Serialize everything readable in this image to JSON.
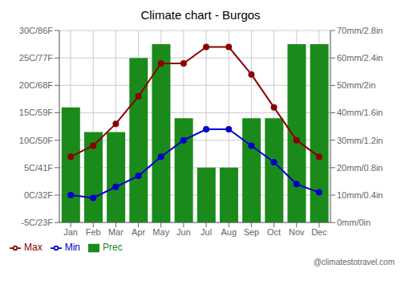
{
  "chart_data": {
    "type": "combo",
    "title": "Climate chart - Burgos",
    "categories": [
      "Jan",
      "Feb",
      "Mar",
      "Apr",
      "May",
      "Jun",
      "Jul",
      "Aug",
      "Sep",
      "Oct",
      "Nov",
      "Dec"
    ],
    "series": [
      {
        "name": "Prec",
        "type": "bar",
        "color": "#1a8a1a",
        "axis": "y2",
        "values": [
          42,
          33,
          33,
          60,
          65,
          38,
          20,
          20,
          38,
          38,
          65,
          65
        ]
      },
      {
        "name": "Min",
        "type": "line",
        "color": "#0000cc",
        "marker": "circle",
        "values": [
          0,
          -0.5,
          1.5,
          3.5,
          7,
          10,
          12,
          12,
          9,
          6,
          2,
          0.5
        ]
      },
      {
        "name": "Max",
        "type": "line",
        "color": "#8b0000",
        "marker": "circle",
        "values": [
          7,
          9,
          13,
          18,
          24,
          24,
          27,
          27,
          22,
          16,
          10,
          7
        ]
      }
    ],
    "ylim": [
      -5,
      30
    ],
    "yticks": [
      {
        "value": -5,
        "label": "-5C/23F"
      },
      {
        "value": 0,
        "label": "0C/32F"
      },
      {
        "value": 5,
        "label": "5C/41F"
      },
      {
        "value": 10,
        "label": "10C/50F"
      },
      {
        "value": 15,
        "label": "15C/59F"
      },
      {
        "value": 20,
        "label": "20C/68F"
      },
      {
        "value": 25,
        "label": "25C/77F"
      },
      {
        "value": 30,
        "label": "30C/86F"
      }
    ],
    "y2lim": [
      0,
      70
    ],
    "y2ticks": [
      {
        "value": 0,
        "label": "0mm/0in"
      },
      {
        "value": 10,
        "label": "10mm/0.4in"
      },
      {
        "value": 20,
        "label": "20mm/0.8in"
      },
      {
        "value": 30,
        "label": "30mm/1.2in"
      },
      {
        "value": 40,
        "label": "40mm/1.6in"
      },
      {
        "value": 50,
        "label": "50mm/2in"
      },
      {
        "value": 60,
        "label": "60mm/2.4in"
      },
      {
        "value": 70,
        "label": "70mm/2.8in"
      }
    ],
    "grid": true,
    "legend": "lower left",
    "annotations": [
      "@climatestotravel.com"
    ]
  }
}
